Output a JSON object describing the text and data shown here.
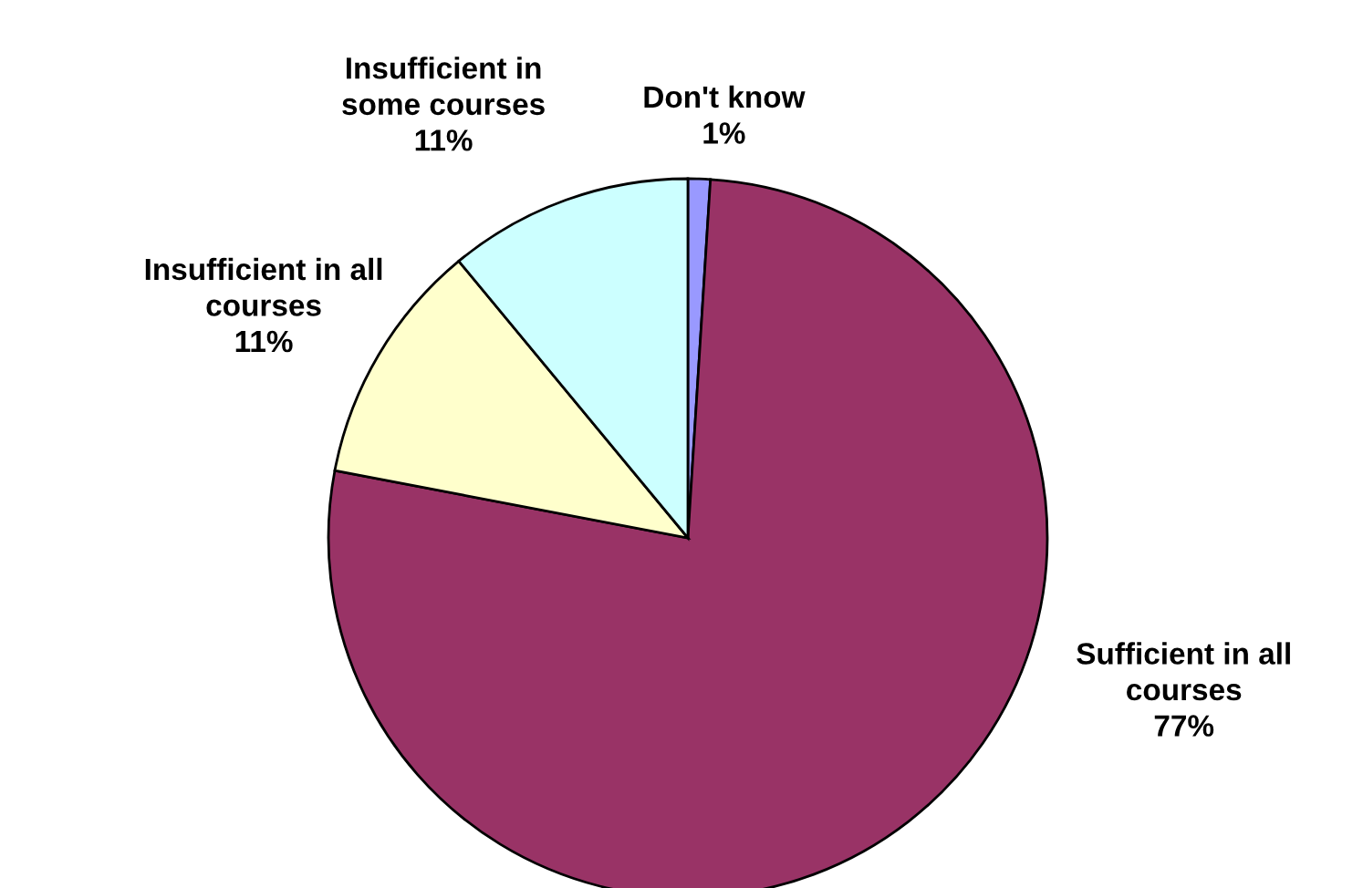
{
  "chart_data": {
    "type": "pie",
    "categories": [
      "Don't know",
      "Sufficient in all\ncourses",
      "Insufficient in all\ncourses",
      "Insufficient in\nsome courses"
    ],
    "values": [
      1,
      77,
      11,
      11
    ],
    "value_labels": [
      "1%",
      "77%",
      "11%",
      "11%"
    ],
    "colors": [
      "#9999ff",
      "#993366",
      "#ffffcc",
      "#ccffff"
    ]
  }
}
